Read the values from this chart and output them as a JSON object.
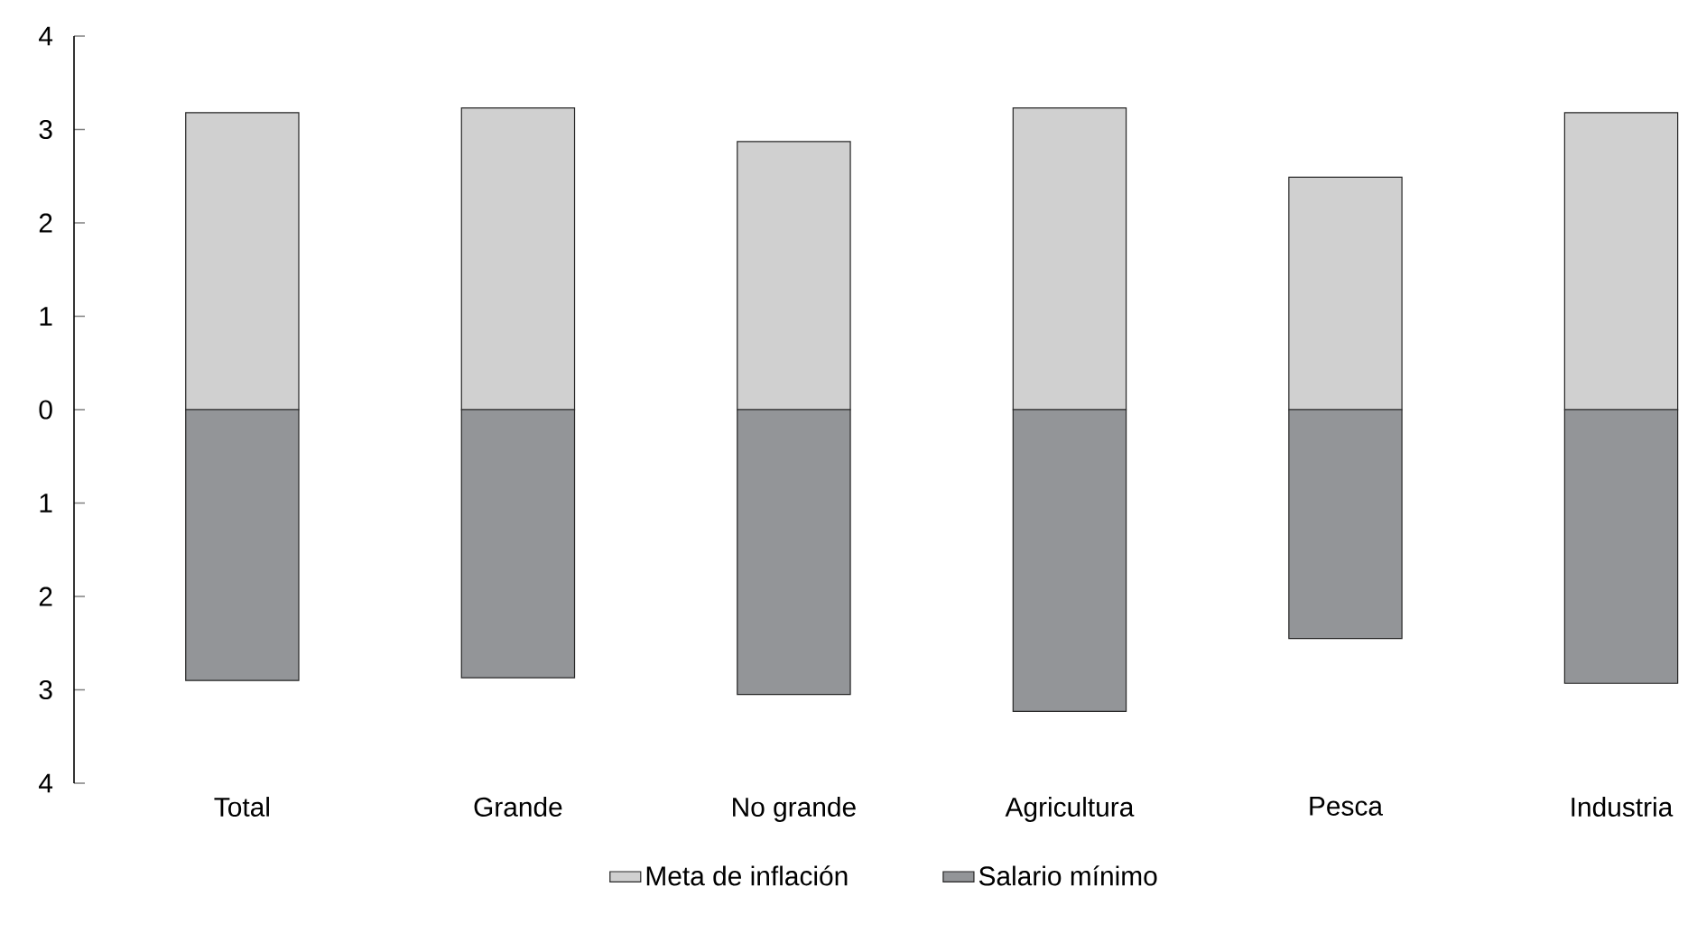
{
  "chart_data": {
    "type": "bar",
    "stacked": true,
    "categories": [
      "Total",
      "Grande",
      "No grande",
      "Agricultura",
      "Pesca",
      "Industria"
    ],
    "series": [
      {
        "name": "Meta de inflación",
        "color": "#d0d0d0",
        "values": [
          3.18,
          3.23,
          2.87,
          3.23,
          2.49,
          3.18
        ]
      },
      {
        "name": "Salario mínimo",
        "color": "#939598",
        "values": [
          -2.9,
          -2.87,
          -3.05,
          -3.23,
          -2.45,
          -2.93
        ]
      }
    ],
    "ylim": [
      -4,
      4
    ],
    "yticks": [
      {
        "value": -4,
        "label": "4"
      },
      {
        "value": -3,
        "label": "3"
      },
      {
        "value": -2,
        "label": "2"
      },
      {
        "value": -1,
        "label": "1"
      },
      0,
      1,
      2,
      3,
      4
    ],
    "grid": false,
    "legend": "bottom"
  }
}
